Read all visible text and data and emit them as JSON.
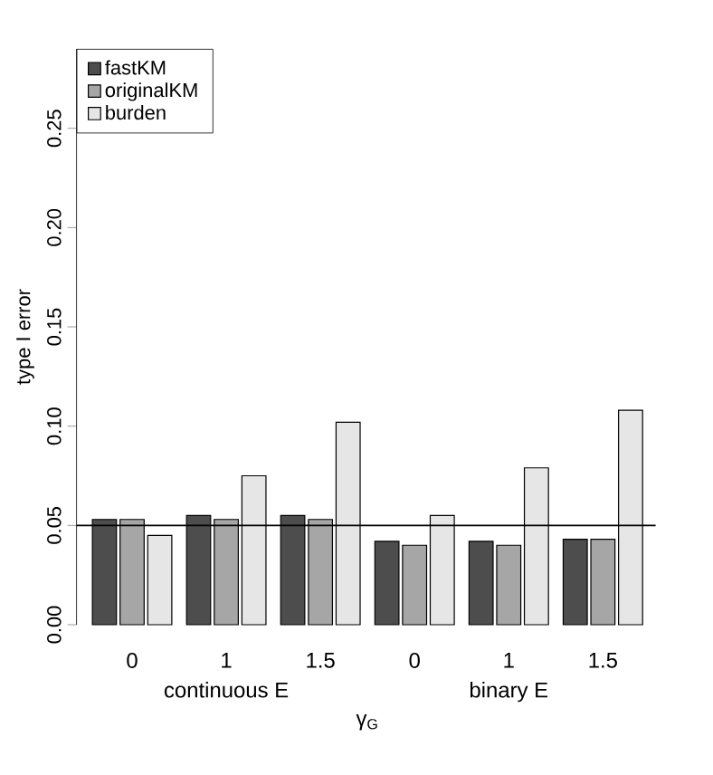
{
  "chart_data": {
    "type": "bar",
    "xlabel": "γ$_{G}$",
    "ylabel": "type I error",
    "categories": [
      "0",
      "1",
      "1.5",
      "0",
      "1",
      "1.5"
    ],
    "series": [
      {
        "name": "fastKM",
        "color": "#4d4d4d",
        "values": [
          0.053,
          0.055,
          0.055,
          0.042,
          0.042,
          0.043
        ]
      },
      {
        "name": "originalKM",
        "color": "#a6a6a6",
        "values": [
          0.053,
          0.053,
          0.053,
          0.04,
          0.04,
          0.043
        ]
      },
      {
        "name": "burden",
        "color": "#e6e6e6",
        "values": [
          0.045,
          0.075,
          0.102,
          0.055,
          0.079,
          0.108
        ]
      }
    ],
    "ylim": [
      0,
      0.29
    ],
    "yticks": [
      {
        "value": 0,
        "label": "0.00"
      },
      0.05,
      {
        "value": 0.1,
        "label": "0.10"
      },
      0.15,
      {
        "value": 0.2,
        "label": "0.20"
      },
      0.25
    ],
    "ref_lines": [
      {
        "axis": "y",
        "value": 0.05
      }
    ],
    "annotations": [
      "continuous E",
      "binary E"
    ],
    "legend": "top left",
    "grid": false
  }
}
